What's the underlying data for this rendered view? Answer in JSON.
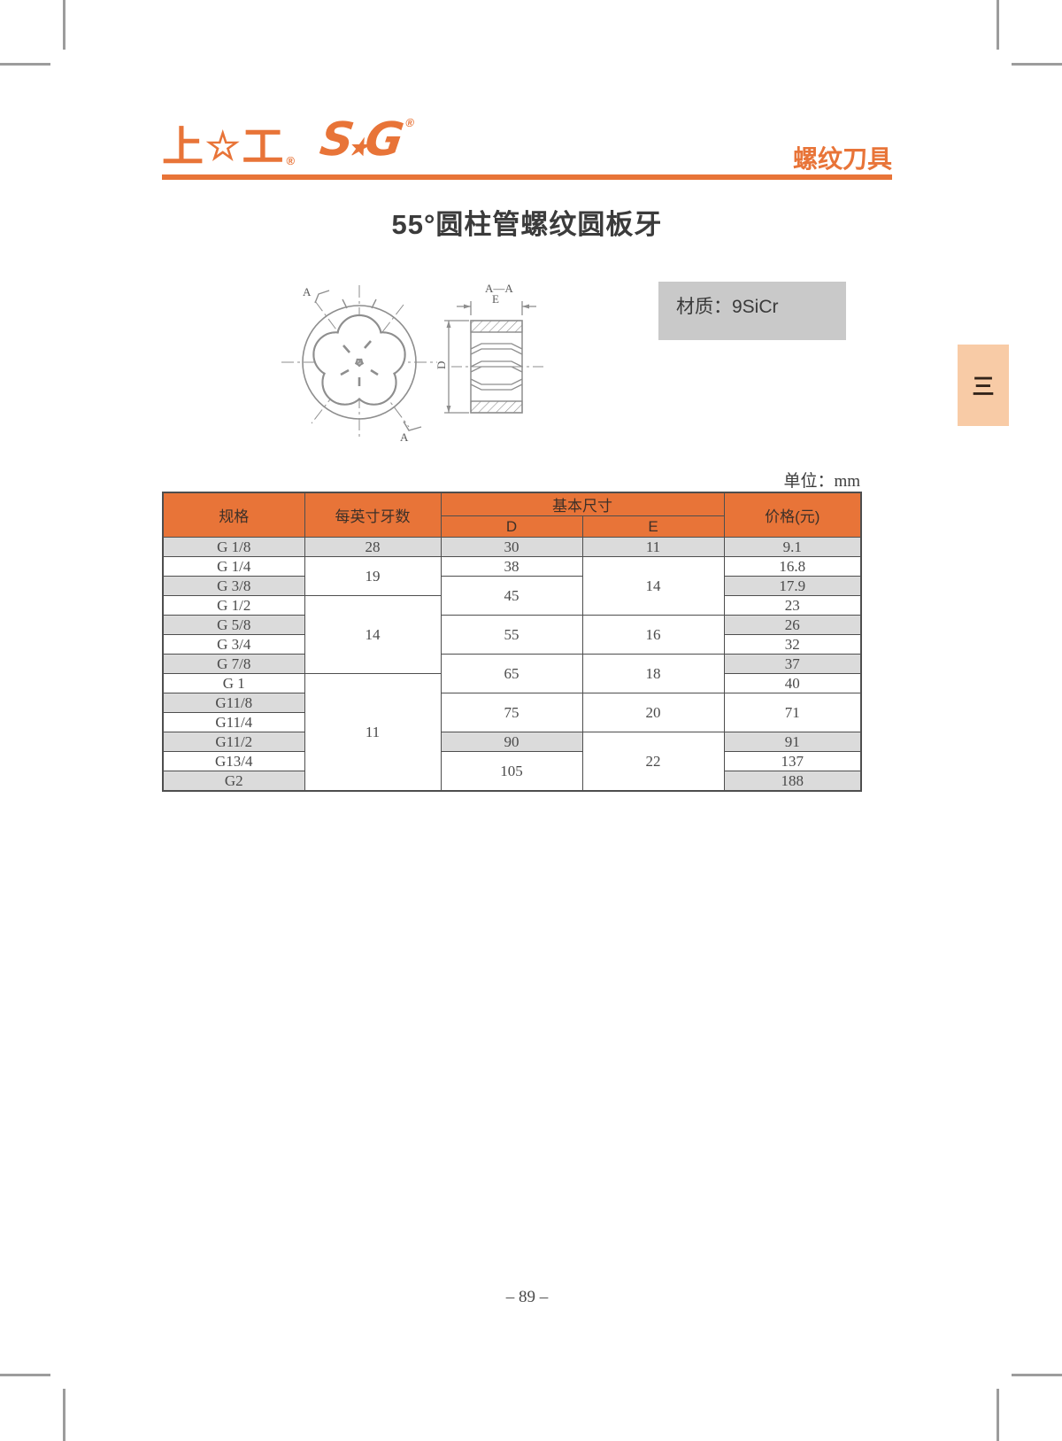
{
  "header": {
    "logo_cn_left": "上",
    "logo_cn_star": "☆",
    "logo_cn_right": "工",
    "logo_cn_reg": "®",
    "logo_sg_s": "S",
    "logo_sg_star": "★",
    "logo_sg_g": "G",
    "logo_sg_reg": "®",
    "category": "螺纹刀具"
  },
  "title": "55°圆柱管螺纹圆板牙",
  "material_label": "材质：9SiCr",
  "side_tab_label": "三",
  "unit_label": "单位：mm",
  "drawing": {
    "label_a_top": "A",
    "label_a_bottom": "A",
    "section_title": "A—A",
    "dim_e": "E",
    "dim_d": "D"
  },
  "table": {
    "col_headers": {
      "spec": "规格",
      "tpi": "每英寸牙数",
      "basic_dim": "基本尺寸",
      "d": "D",
      "e": "E",
      "price": "价格(元)"
    },
    "spec_cells": [
      {
        "value": "G 1/8",
        "span": 1,
        "shade": true
      },
      {
        "value": "G 1/4",
        "span": 1,
        "shade": false
      },
      {
        "value": "G 3/8",
        "span": 1,
        "shade": true
      },
      {
        "value": "G 1/2",
        "span": 1,
        "shade": false
      },
      {
        "value": "G 5/8",
        "span": 1,
        "shade": true
      },
      {
        "value": "G 3/4",
        "span": 1,
        "shade": false
      },
      {
        "value": "G 7/8",
        "span": 1,
        "shade": true
      },
      {
        "value": "G 1",
        "span": 1,
        "shade": false
      },
      {
        "value": "G11/8",
        "span": 1,
        "shade": true
      },
      {
        "value": "G11/4",
        "span": 1,
        "shade": false
      },
      {
        "value": "G11/2",
        "span": 1,
        "shade": true
      },
      {
        "value": "G13/4",
        "span": 1,
        "shade": false
      },
      {
        "value": "G2",
        "span": 1,
        "shade": true
      }
    ],
    "tpi_cells": [
      {
        "value": "28",
        "span": 1,
        "shade": true
      },
      {
        "value": "19",
        "span": 2,
        "shade": false
      },
      {
        "value": "14",
        "span": 4,
        "shade": false
      },
      {
        "value": "11",
        "span": 6,
        "shade": false
      }
    ],
    "d_cells": [
      {
        "value": "30",
        "span": 1,
        "shade": true
      },
      {
        "value": "38",
        "span": 1,
        "shade": false
      },
      {
        "value": "45",
        "span": 2,
        "shade": false
      },
      {
        "value": "55",
        "span": 2,
        "shade": false
      },
      {
        "value": "65",
        "span": 2,
        "shade": false
      },
      {
        "value": "75",
        "span": 2,
        "shade": false
      },
      {
        "value": "90",
        "span": 1,
        "shade": true
      },
      {
        "value": "105",
        "span": 2,
        "shade": false
      }
    ],
    "e_cells": [
      {
        "value": "11",
        "span": 1,
        "shade": true
      },
      {
        "value": "14",
        "span": 3,
        "shade": false
      },
      {
        "value": "16",
        "span": 2,
        "shade": false
      },
      {
        "value": "18",
        "span": 2,
        "shade": false
      },
      {
        "value": "20",
        "span": 2,
        "shade": false
      },
      {
        "value": "22",
        "span": 3,
        "shade": false
      }
    ],
    "price_cells": [
      {
        "value": "9.1",
        "span": 1,
        "shade": true
      },
      {
        "value": "16.8",
        "span": 1,
        "shade": false
      },
      {
        "value": "17.9",
        "span": 1,
        "shade": true
      },
      {
        "value": "23",
        "span": 1,
        "shade": false
      },
      {
        "value": "26",
        "span": 1,
        "shade": true
      },
      {
        "value": "32",
        "span": 1,
        "shade": false
      },
      {
        "value": "37",
        "span": 1,
        "shade": true
      },
      {
        "value": "40",
        "span": 1,
        "shade": false
      },
      {
        "value": "71",
        "span": 2,
        "shade": false
      },
      {
        "value": "91",
        "span": 1,
        "shade": true
      },
      {
        "value": "137",
        "span": 1,
        "shade": false
      },
      {
        "value": "188",
        "span": 1,
        "shade": true
      }
    ]
  },
  "footer": {
    "page_number": "– 89 –"
  },
  "colors": {
    "accent": "#E87438",
    "tab_bg": "#F8CBA6",
    "material_bg": "#C9C9C9",
    "row_shade": "#DBDBDB",
    "table_border": "#4E4E4E"
  }
}
